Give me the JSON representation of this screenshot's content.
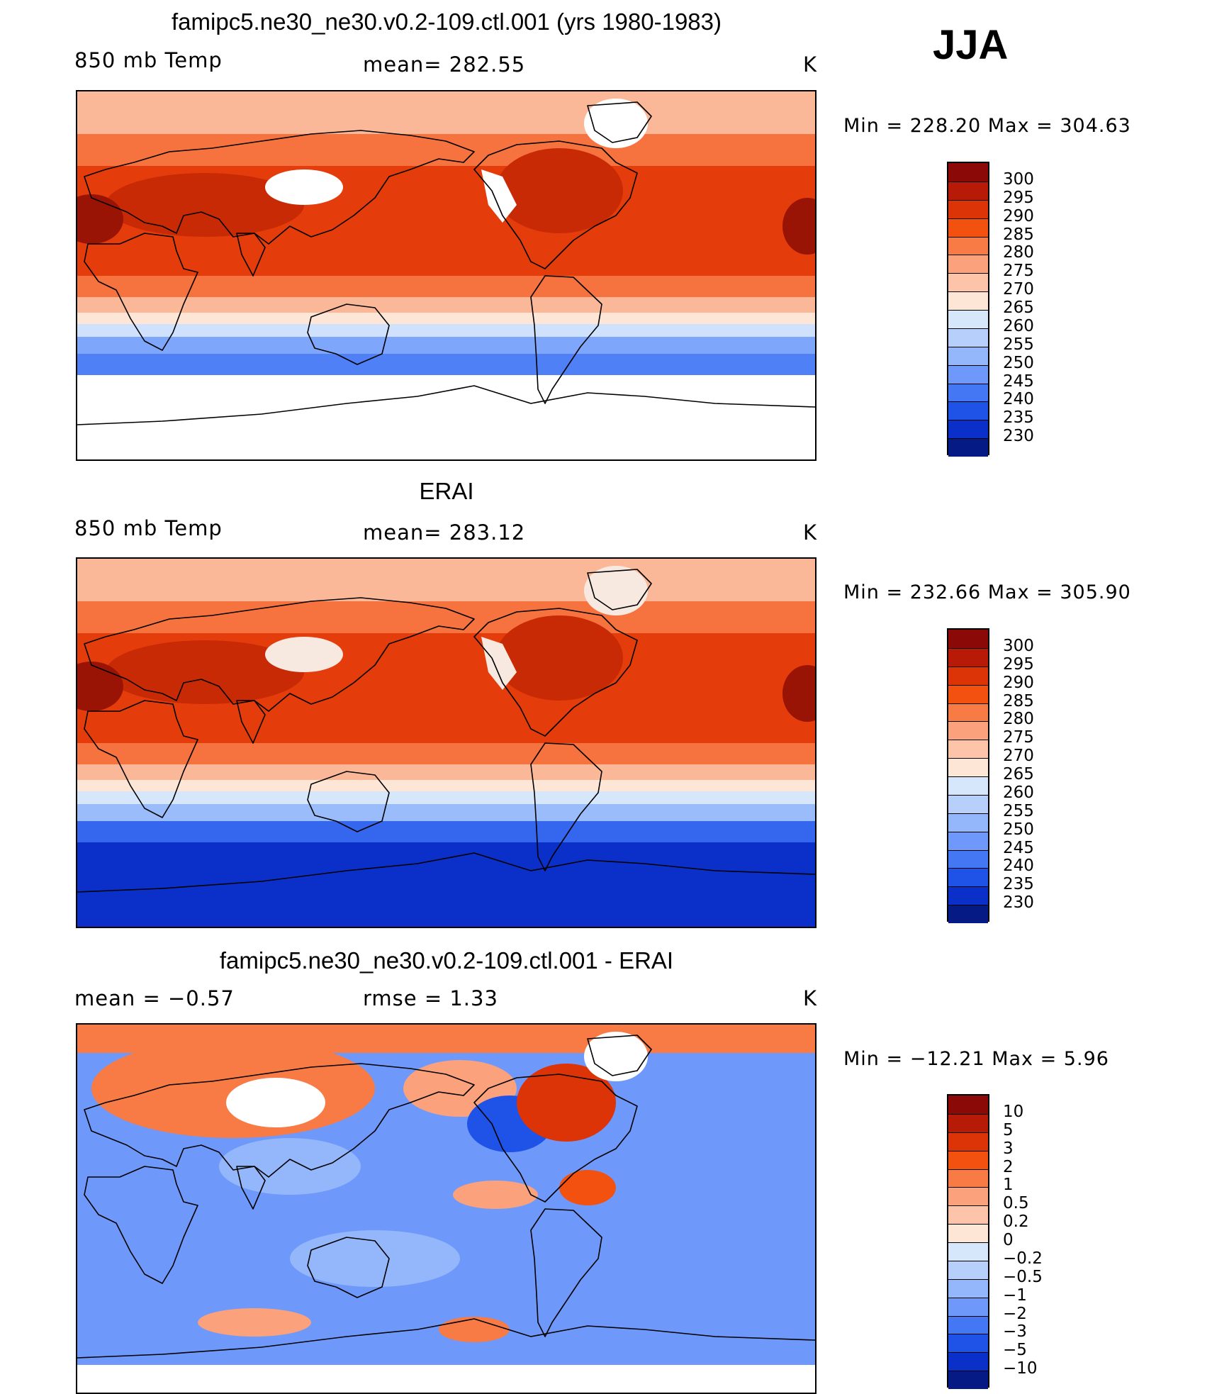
{
  "season": "JJA",
  "panels": [
    {
      "title": "famipc5.ne30_ne30.v0.2-109.ctl.001 (yrs 1980-1983)",
      "left_label": "850 mb Temp",
      "center_label": "mean= 282.55",
      "units": "K",
      "minmax": "Min  =  228.20  Max  =  304.63",
      "colorbar": {
        "labels": [
          "300",
          "295",
          "290",
          "285",
          "280",
          "275",
          "270",
          "265",
          "260",
          "255",
          "250",
          "245",
          "240",
          "235",
          "230"
        ],
        "colors": [
          "#8b0a08",
          "#b71a06",
          "#dc3307",
          "#f2510f",
          "#f87a45",
          "#fba27d",
          "#fdc4a9",
          "#fde6d6",
          "#d6e6fb",
          "#b6d0fb",
          "#94b7fb",
          "#6e99fa",
          "#4477f4",
          "#1f52e6",
          "#0b2fc9",
          "#061a85"
        ]
      },
      "field_colors": {
        "polar_south": "#ffffff",
        "s_cold": "#4f80f5",
        "s_cool": "#7ea7fb",
        "s_mid": "#cfe1fd",
        "s_mild": "#fde6d6",
        "s_warm": "#fbb899",
        "trop": "#e43c0b",
        "trop_hot": "#c82a06",
        "mid_north": "#f6723e",
        "north_cool": "#fbb899",
        "hot_spot": "#9a1406",
        "land_gap": "#ffffff"
      }
    },
    {
      "title": "ERAI",
      "left_label": "850 mb Temp",
      "center_label": "mean= 283.12",
      "units": "K",
      "minmax": "Min  =  232.66  Max  =  305.90",
      "colorbar": {
        "labels": [
          "300",
          "295",
          "290",
          "285",
          "280",
          "275",
          "270",
          "265",
          "260",
          "255",
          "250",
          "245",
          "240",
          "235",
          "230"
        ],
        "colors": [
          "#8b0a08",
          "#b71a06",
          "#dc3307",
          "#f2510f",
          "#f87a45",
          "#fba27d",
          "#fdc4a9",
          "#fde6d6",
          "#d6e6fb",
          "#b6d0fb",
          "#94b7fb",
          "#6e99fa",
          "#4477f4",
          "#1f52e6",
          "#0b2fc9",
          "#061a85"
        ]
      },
      "field_colors": {
        "polar_south": "#0b2fc9",
        "s_cold": "#3567ee",
        "s_cool": "#9bbcfb",
        "s_mid": "#d6e6fb",
        "s_mild": "#fde6d6",
        "s_warm": "#fbb899",
        "trop": "#e43c0b",
        "trop_hot": "#c82a06",
        "mid_north": "#f6723e",
        "north_cool": "#fbb899",
        "hot_spot": "#9a1406",
        "land_gap": "#f8e9e0"
      }
    },
    {
      "title": "famipc5.ne30_ne30.v0.2-109.ctl.001 - ERAI",
      "left_label": "mean =   −0.57",
      "center_label": "rmse =    1.33",
      "units": "K",
      "minmax": "Min  =  −12.21  Max  =     5.96",
      "colorbar": {
        "labels": [
          "10",
          "5",
          "3",
          "2",
          "1",
          "0.5",
          "0.2",
          "0",
          "−0.2",
          "−0.5",
          "−1",
          "−2",
          "−3",
          "−5",
          "−10"
        ],
        "colors": [
          "#8b0a08",
          "#b71a06",
          "#dc3307",
          "#f2510f",
          "#f87a45",
          "#fba27d",
          "#fdc4a9",
          "#fde6d6",
          "#d6e6fb",
          "#b6d0fb",
          "#94b7fb",
          "#6e99fa",
          "#4477f4",
          "#1f52e6",
          "#0b2fc9",
          "#061a85"
        ]
      }
    }
  ]
}
